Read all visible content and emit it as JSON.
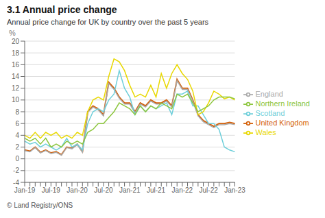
{
  "chart_data": {
    "type": "line",
    "title": "3.1 Annual price change",
    "subtitle": "Annual price change for UK by country over the past 5 years",
    "annotations": [
      "© Land Registry/ONS"
    ],
    "ylabel": "%",
    "ylim": [
      -4,
      20
    ],
    "yticks": [
      -4,
      -2,
      0,
      2,
      4,
      6,
      8,
      10,
      12,
      14,
      16,
      18,
      20
    ],
    "grid": "y",
    "legend": "right",
    "categories": [
      "Jan-19",
      null,
      null,
      null,
      null,
      "Jul-19",
      null,
      null,
      null,
      null,
      "Jan-20",
      null,
      null,
      null,
      null,
      "Jul-20",
      null,
      null,
      null,
      null,
      "Jan-21",
      null,
      null,
      null,
      null,
      "Jul-21",
      null,
      null,
      null,
      null,
      "Jan-22",
      null,
      null,
      null,
      null,
      "Jul-22",
      null,
      null,
      null,
      null,
      "Jan-23"
    ],
    "series": [
      {
        "name": "United Kingdom",
        "color": "#d4610a",
        "values": [
          1.5,
          1.3,
          2.0,
          1.1,
          1.5,
          1.0,
          1.2,
          0.7,
          2.0,
          1.8,
          2.5,
          1.2,
          8.0,
          9.0,
          8.5,
          7.5,
          13.0,
          12.0,
          10.5,
          9.5,
          9.5,
          8.0,
          9.5,
          9.0,
          10.0,
          9.5,
          9.5,
          10.0,
          9.0,
          13.5,
          12.0,
          12.0,
          10.0,
          7.5,
          6.5,
          6.0,
          5.5,
          6.0,
          6.0,
          6.2,
          6.0
        ]
      },
      {
        "name": "England",
        "color": "#aaaaaa",
        "values": [
          1.4,
          1.2,
          1.9,
          1.0,
          1.4,
          0.9,
          1.1,
          0.6,
          1.9,
          1.7,
          2.4,
          1.1,
          7.9,
          8.8,
          8.3,
          7.3,
          12.8,
          11.8,
          10.3,
          9.3,
          9.3,
          7.8,
          9.3,
          8.8,
          9.8,
          9.3,
          9.3,
          9.8,
          8.8,
          13.3,
          11.8,
          11.8,
          9.8,
          7.3,
          6.3,
          5.8,
          5.3,
          5.8,
          5.8,
          6.0,
          5.8
        ]
      },
      {
        "name": "Scotland",
        "color": "#6ecfda",
        "values": [
          3.0,
          2.5,
          2.8,
          2.0,
          2.5,
          2.0,
          1.5,
          2.0,
          3.5,
          2.0,
          2.5,
          1.5,
          6.0,
          8.0,
          8.5,
          8.0,
          10.0,
          11.0,
          15.0,
          12.0,
          10.5,
          7.5,
          9.0,
          8.0,
          9.0,
          8.5,
          9.0,
          9.5,
          7.5,
          11.0,
          11.0,
          11.5,
          9.0,
          9.0,
          7.5,
          6.0,
          6.0,
          5.0,
          2.0,
          1.5,
          1.2
        ]
      },
      {
        "name": "Wales",
        "color": "#e8d800",
        "values": [
          4.0,
          3.5,
          4.5,
          3.5,
          4.5,
          4.0,
          4.5,
          3.5,
          4.0,
          3.5,
          4.5,
          4.0,
          8.0,
          10.0,
          10.5,
          10.0,
          14.0,
          17.0,
          16.5,
          15.0,
          12.5,
          10.5,
          11.0,
          10.5,
          12.5,
          10.5,
          14.5,
          12.0,
          14.5,
          16.0,
          14.5,
          13.5,
          11.5,
          7.5,
          8.0,
          9.5,
          11.5,
          11.0,
          10.2,
          10.5,
          10.0
        ]
      },
      {
        "name": "Northern Ireland",
        "color": "#8dc63f",
        "values": [
          3.5,
          3.0,
          3.5,
          2.5,
          3.5,
          2.0,
          2.5,
          2.0,
          3.0,
          2.5,
          3.0,
          2.5,
          4.5,
          5.0,
          6.0,
          6.0,
          7.0,
          8.0,
          9.5,
          9.0,
          8.5,
          7.5,
          9.0,
          8.0,
          9.0,
          8.5,
          9.5,
          9.0,
          8.5,
          11.0,
          10.5,
          11.0,
          9.5,
          8.0,
          8.5,
          9.0,
          10.0,
          10.5,
          10.5,
          10.5,
          10.2
        ]
      }
    ]
  }
}
